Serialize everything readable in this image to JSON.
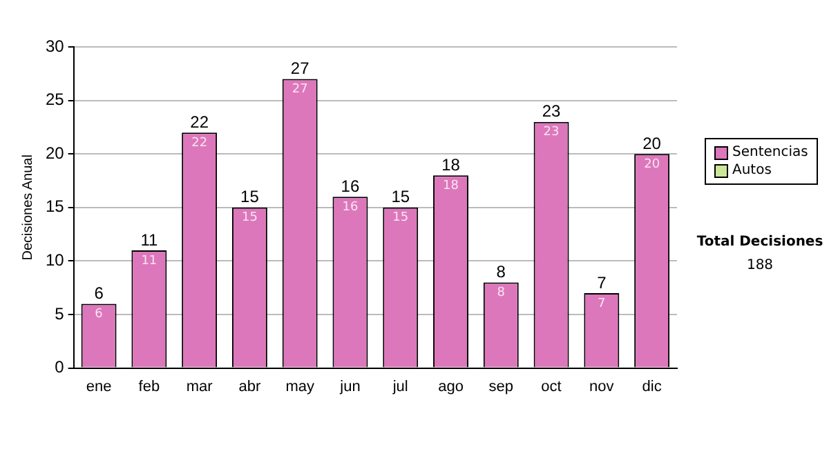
{
  "chart_data": {
    "type": "bar",
    "stacked": true,
    "ylabel": "Decisiones Anual",
    "categories": [
      "ene",
      "feb",
      "mar",
      "abr",
      "may",
      "jun",
      "jul",
      "ago",
      "sep",
      "oct",
      "nov",
      "dic"
    ],
    "series": [
      {
        "name": "Sentencias",
        "color": "#dd77bb",
        "values": [
          6,
          11,
          22,
          15,
          27,
          16,
          15,
          18,
          8,
          23,
          7,
          20
        ],
        "value_labels": [
          "6",
          "11",
          "22",
          "15",
          "27",
          "16",
          "15",
          "18",
          "8",
          "23",
          "7",
          "20"
        ]
      },
      {
        "name": "Autos",
        "color": "#cce699",
        "values": [
          0,
          0,
          0,
          0,
          0,
          0,
          0,
          0,
          0,
          0,
          0,
          0
        ]
      }
    ],
    "totals": [
      "6",
      "11",
      "22",
      "15",
      "27",
      "16",
      "15",
      "18",
      "8",
      "23",
      "7",
      "20"
    ],
    "ylim": [
      0,
      30
    ],
    "yticks": [
      0,
      5,
      10,
      15,
      20,
      25,
      30
    ],
    "grid": "y",
    "legend": "right",
    "annotations": [
      "Total Decisiones",
      "188"
    ]
  }
}
